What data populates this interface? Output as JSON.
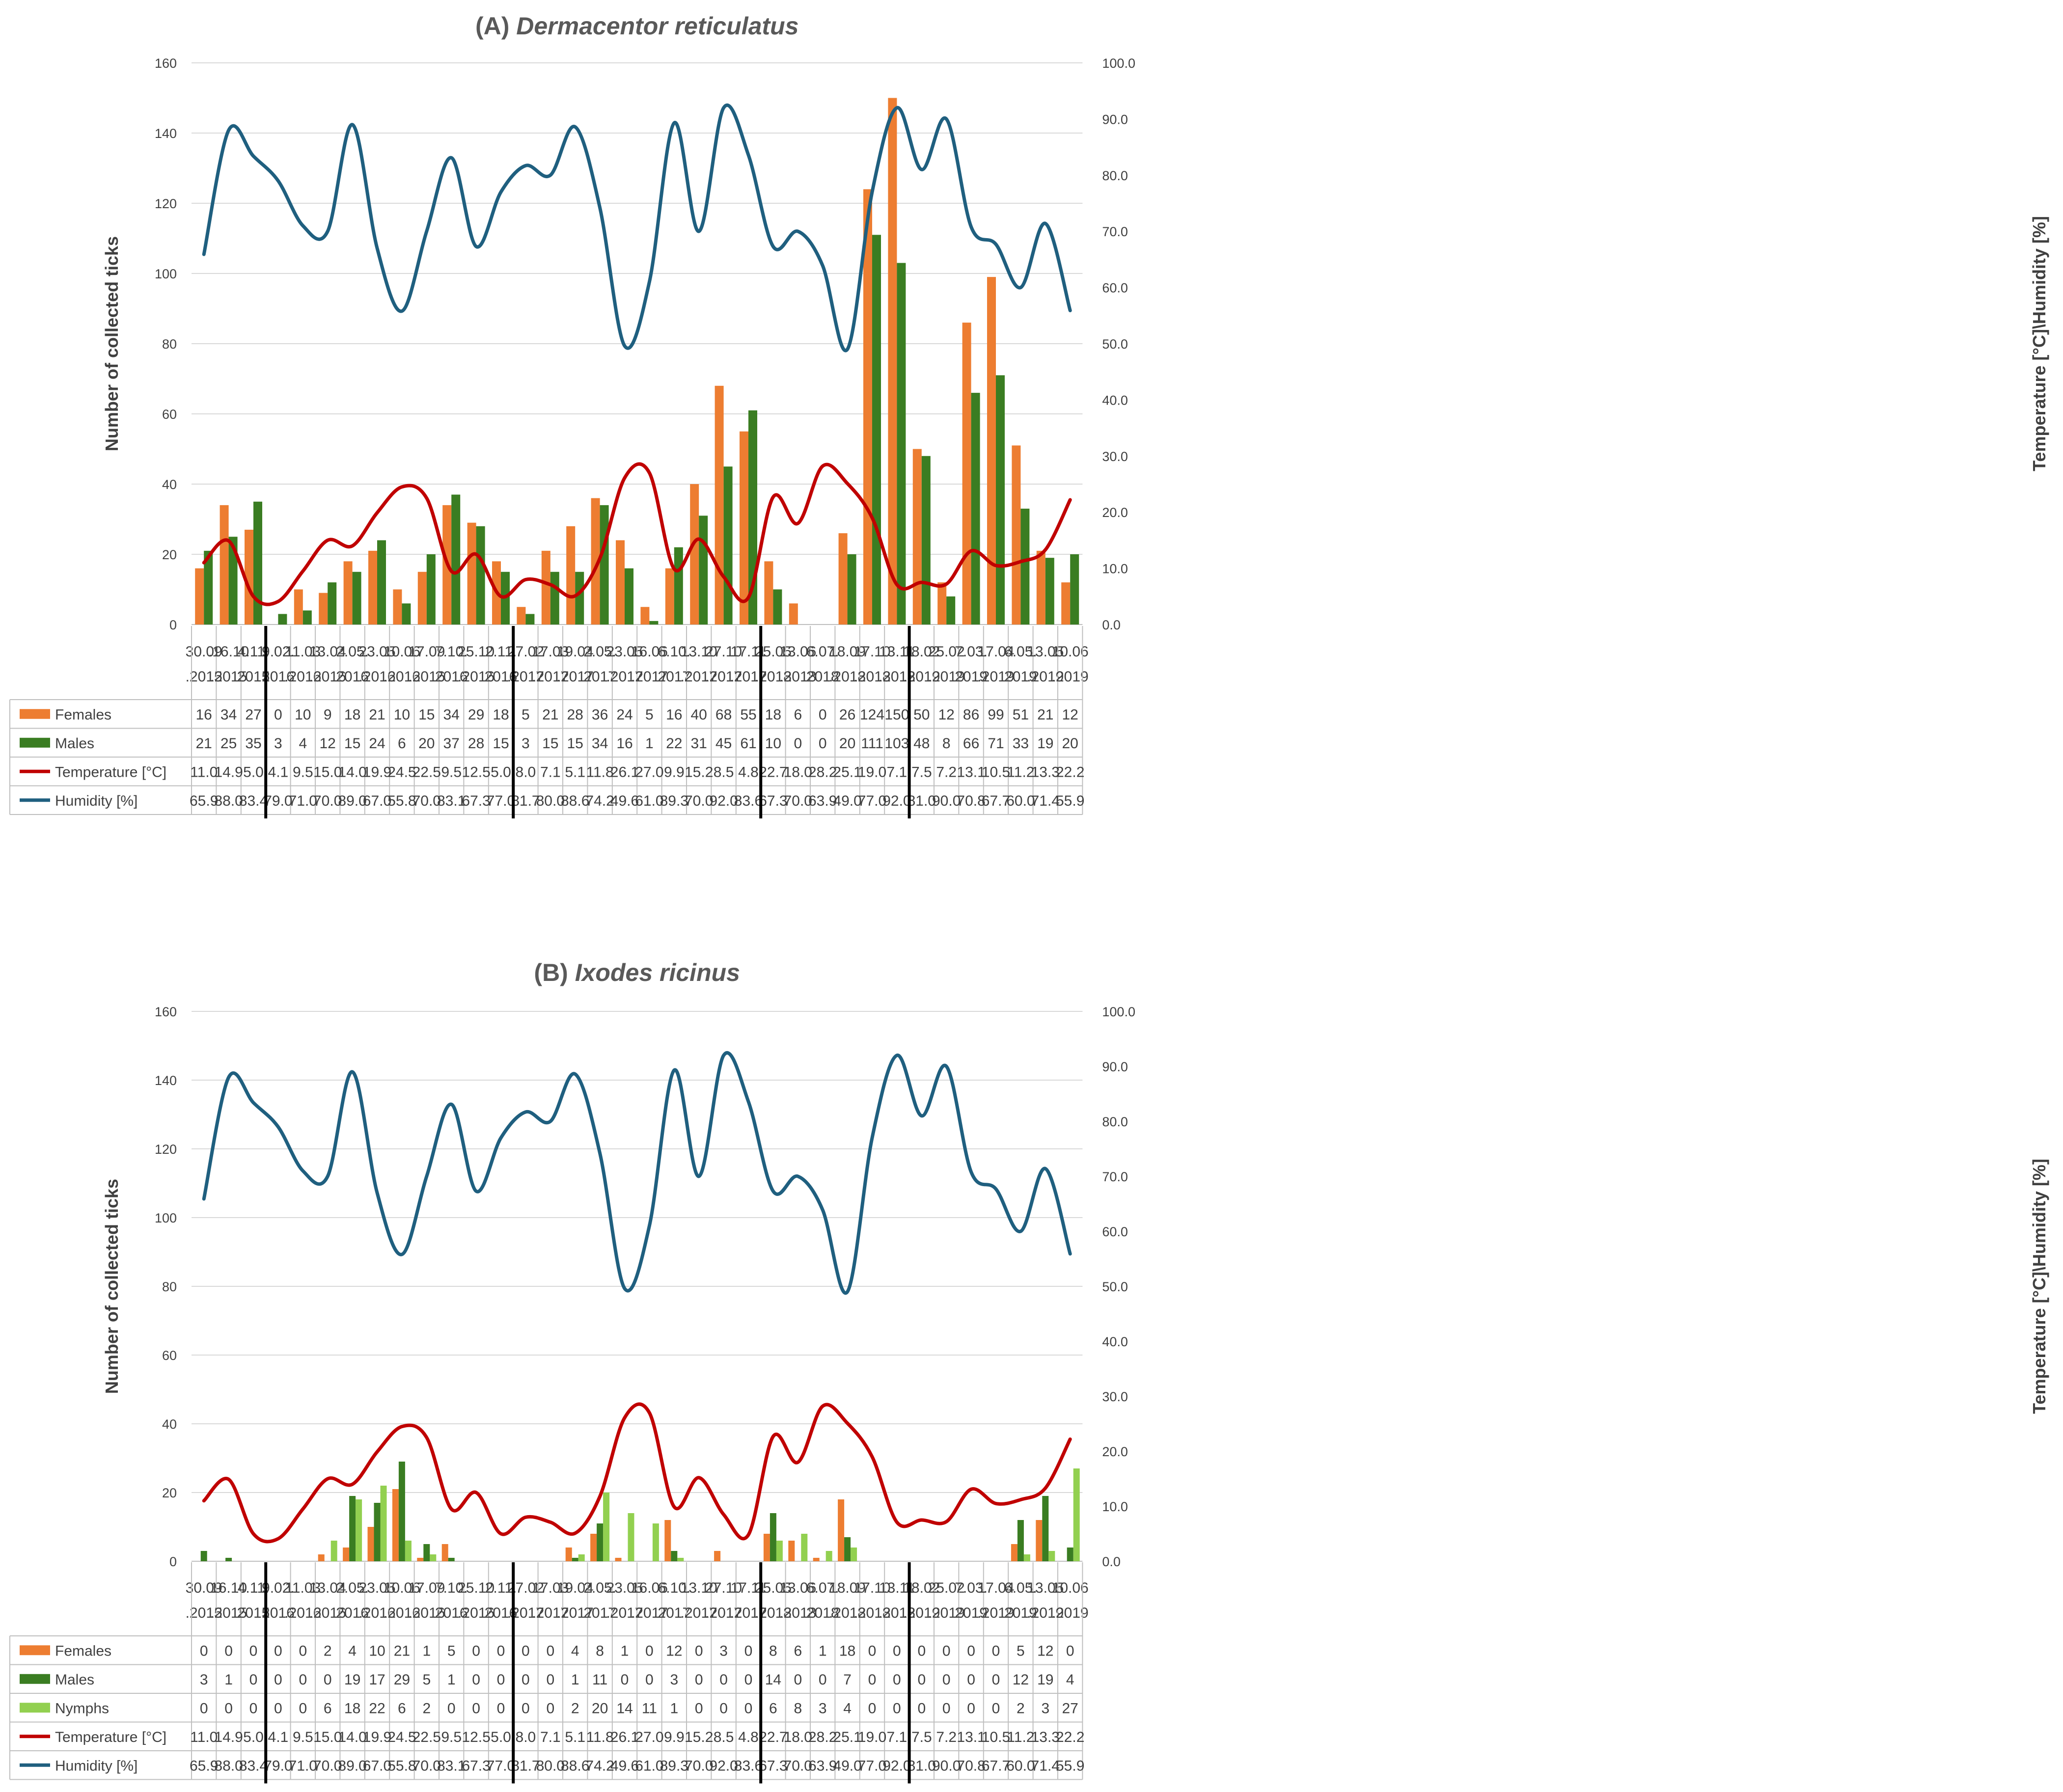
{
  "chart_data": [
    {
      "type": "bar",
      "title_prefix": "(A)",
      "title_species": "Dermacentor reticulatus",
      "ylabel": "Number of collected ticks",
      "y2label": "Temperature [°C]\\Humidity [%]",
      "ylim": [
        0,
        160
      ],
      "y_ticks": [
        "0",
        "20",
        "40",
        "60",
        "80",
        "100",
        "120",
        "140",
        "160"
      ],
      "y2lim": [
        0,
        100
      ],
      "y2_ticks": [
        "0.0",
        "10.0",
        "20.0",
        "30.0",
        "40.0",
        "50.0",
        "60.0",
        "70.0",
        "80.0",
        "90.0",
        "100.0"
      ],
      "grid": true,
      "date_line1": [
        "30.09",
        ".16.10",
        "4.11.",
        "9.02.",
        "11.03",
        "13.04",
        "2.05.",
        "23.05",
        "10.06",
        "17.09",
        "7.10.",
        "25.10",
        "2.11.",
        "27.02",
        "17.03",
        "19.04",
        "2.05.",
        "23.05",
        "16.06",
        "6.10.",
        "13.10",
        "27.10",
        "17.11",
        "25.05",
        "13.06",
        "6.07.",
        "18.09",
        "17.10",
        "13.11",
        "18.02",
        "25.02",
        "7.03.",
        "17.04",
        "6.05.",
        "13.05",
        "10.06"
      ],
      "date_line2": [
        ".2015",
        ".2015",
        "2015",
        "2016",
        ".2016",
        ".2016",
        "2016",
        ".2016",
        ".2016",
        ".2016",
        "2016",
        ".2016",
        "2016",
        ".2017",
        ".2017",
        ".2017",
        "2017",
        ".2017",
        ".2017",
        "2017",
        ".2017",
        ".2017",
        ".2017",
        ".2018",
        ".2018",
        "2018",
        ".2018",
        ".2018",
        ".2018",
        ".2019",
        ".2019",
        "2019",
        ".2019",
        "2019",
        ".2019",
        ".2019"
      ],
      "year_breaks": [
        3,
        13,
        23,
        29
      ],
      "series": [
        {
          "name": "Females",
          "kind": "bar",
          "color": "#ED7D31",
          "values": [
            "16",
            "34",
            "27",
            "0",
            "10",
            "9",
            "18",
            "21",
            "10",
            "15",
            "34",
            "29",
            "18",
            "5",
            "21",
            "28",
            "36",
            "24",
            "5",
            "16",
            "40",
            "68",
            "55",
            "18",
            "6",
            "0",
            "26",
            "124",
            "150",
            "50",
            "12",
            "86",
            "99",
            "51",
            "21",
            "12"
          ]
        },
        {
          "name": "Males",
          "kind": "bar",
          "color": "#3A7D22",
          "values": [
            "21",
            "25",
            "35",
            "3",
            "4",
            "12",
            "15",
            "24",
            "6",
            "20",
            "37",
            "28",
            "15",
            "3",
            "15",
            "15",
            "34",
            "16",
            "1",
            "22",
            "31",
            "45",
            "61",
            "10",
            "0",
            "0",
            "20",
            "111",
            "103",
            "48",
            "8",
            "66",
            "71",
            "33",
            "19",
            "20"
          ]
        },
        {
          "name": "Temperature [°C]",
          "kind": "line",
          "axis": "right",
          "color": "#C00000",
          "values": [
            "11.0",
            "14.9",
            "5.0",
            "4.1",
            "9.5",
            "15.0",
            "14.0",
            "19.9",
            "24.5",
            "22.5",
            "9.5",
            "12.5",
            "5.0",
            "8.0",
            "7.1",
            "5.1",
            "11.8",
            "26.1",
            "27.0",
            "9.9",
            "15.2",
            "8.5",
            "4.8",
            "22.7",
            "18.0",
            "28.2",
            "25.1",
            "19.0",
            "7.1",
            "7.5",
            "7.2",
            "13.1",
            "10.5",
            "11.2",
            "13.3",
            "22.2"
          ]
        },
        {
          "name": "Humidity [%]",
          "kind": "line",
          "axis": "right",
          "color": "#1F5F7F",
          "values": [
            "65.9",
            "88.0",
            "83.4",
            "79.0",
            "71.0",
            "70.0",
            "89.0",
            "67.0",
            "55.8",
            "70.0",
            "83.1",
            "67.3",
            "77.0",
            "81.7",
            "80.0",
            "88.6",
            "74.2",
            "49.6",
            "61.0",
            "89.3",
            "70.0",
            "92.0",
            "83.6",
            "67.3",
            "70.0",
            "63.9",
            "49.0",
            "77.0",
            "92.0",
            "81.0",
            "90.0",
            "70.8",
            "67.7",
            "60.0",
            "71.4",
            "55.9"
          ]
        }
      ]
    },
    {
      "type": "bar",
      "title_prefix": "(B)",
      "title_species": "Ixodes ricinus",
      "ylabel": "Number of collected ticks",
      "y2label": "Temperature [°C]\\Humidity [%]",
      "ylim": [
        0,
        160
      ],
      "y_ticks": [
        "0",
        "20",
        "40",
        "60",
        "80",
        "100",
        "120",
        "140",
        "160"
      ],
      "y2lim": [
        0,
        100
      ],
      "y2_ticks": [
        "0.0",
        "10.0",
        "20.0",
        "30.0",
        "40.0",
        "50.0",
        "60.0",
        "70.0",
        "80.0",
        "90.0",
        "100.0"
      ],
      "grid": true,
      "date_line1": [
        "30.09",
        "16.10",
        "4.11.",
        "9.02.",
        "11.03",
        "13.04",
        "2.05.",
        "23.05",
        "10.06",
        "17.09",
        "7.10.",
        "25.10",
        "2.11.",
        "27.02",
        "17.03",
        "19.04",
        "2.05.",
        "23.05",
        "16.06",
        "6.10.",
        "13.10",
        "27.10",
        "17.11",
        "25.05",
        "13.06",
        "6.07.",
        "18.09",
        "17.10",
        "13.11",
        "18.02",
        "25.02",
        "7.03.",
        "17.04",
        "6.05.",
        "13.05",
        "10.06"
      ],
      "date_line2": [
        ".2015",
        ".2015",
        "2015",
        "2016",
        ".2016",
        ".2016",
        "2016",
        ".2016",
        ".2016",
        ".2016",
        "2016",
        ".2016",
        "2016",
        ".2017",
        ".2017",
        ".2017",
        "2017",
        ".2017",
        ".2017",
        "2017",
        ".2017",
        ".2017",
        ".2017",
        ".2018",
        ".2018",
        "2018",
        ".2018",
        ".2018",
        ".2018",
        ".2019",
        ".2019",
        "2019",
        ".2019",
        "2019",
        ".2019",
        ".2019"
      ],
      "year_breaks": [
        3,
        13,
        23,
        29
      ],
      "series": [
        {
          "name": "Females",
          "kind": "bar",
          "color": "#ED7D31",
          "values": [
            "0",
            "0",
            "0",
            "0",
            "0",
            "2",
            "4",
            "10",
            "21",
            "1",
            "5",
            "0",
            "0",
            "0",
            "0",
            "4",
            "8",
            "1",
            "0",
            "12",
            "0",
            "3",
            "0",
            "8",
            "6",
            "1",
            "18",
            "0",
            "0",
            "0",
            "0",
            "0",
            "0",
            "5",
            "12",
            "0"
          ]
        },
        {
          "name": "Males",
          "kind": "bar",
          "color": "#3A7D22",
          "values": [
            "3",
            "1",
            "0",
            "0",
            "0",
            "0",
            "19",
            "17",
            "29",
            "5",
            "1",
            "0",
            "0",
            "0",
            "0",
            "1",
            "11",
            "0",
            "0",
            "3",
            "0",
            "0",
            "0",
            "14",
            "0",
            "0",
            "7",
            "0",
            "0",
            "0",
            "0",
            "0",
            "0",
            "12",
            "19",
            "4"
          ]
        },
        {
          "name": "Nymphs",
          "kind": "bar",
          "color": "#92D050",
          "values": [
            "0",
            "0",
            "0",
            "0",
            "0",
            "6",
            "18",
            "22",
            "6",
            "2",
            "0",
            "0",
            "0",
            "0",
            "0",
            "2",
            "20",
            "14",
            "11",
            "1",
            "0",
            "0",
            "0",
            "6",
            "8",
            "3",
            "4",
            "0",
            "0",
            "0",
            "0",
            "0",
            "0",
            "2",
            "3",
            "27"
          ]
        },
        {
          "name": "Temperature [°C]",
          "kind": "line",
          "axis": "right",
          "color": "#C00000",
          "values": [
            "11.0",
            "14.9",
            "5.0",
            "4.1",
            "9.5",
            "15.0",
            "14.0",
            "19.9",
            "24.5",
            "22.5",
            "9.5",
            "12.5",
            "5.0",
            "8.0",
            "7.1",
            "5.1",
            "11.8",
            "26.1",
            "27.0",
            "9.9",
            "15.2",
            "8.5",
            "4.8",
            "22.7",
            "18.0",
            "28.2",
            "25.1",
            "19.0",
            "7.1",
            "7.5",
            "7.2",
            "13.1",
            "10.5",
            "11.2",
            "13.3",
            "22.2"
          ]
        },
        {
          "name": "Humidity [%]",
          "kind": "line",
          "axis": "right",
          "color": "#1F5F7F",
          "values": [
            "65.9",
            "88.0",
            "83.4",
            "79.0",
            "71.0",
            "70.0",
            "89.0",
            "67.0",
            "55.8",
            "70.0",
            "83.1",
            "67.3",
            "77.0",
            "81.7",
            "80.0",
            "88.6",
            "74.2",
            "49.6",
            "61.0",
            "89.3",
            "70.0",
            "92.0",
            "83.6",
            "67.3",
            "70.0",
            "63.9",
            "49.0",
            "77.0",
            "92.0",
            "81.0",
            "90.0",
            "70.8",
            "67.7",
            "60.0",
            "71.4",
            "55.9"
          ]
        }
      ]
    }
  ]
}
